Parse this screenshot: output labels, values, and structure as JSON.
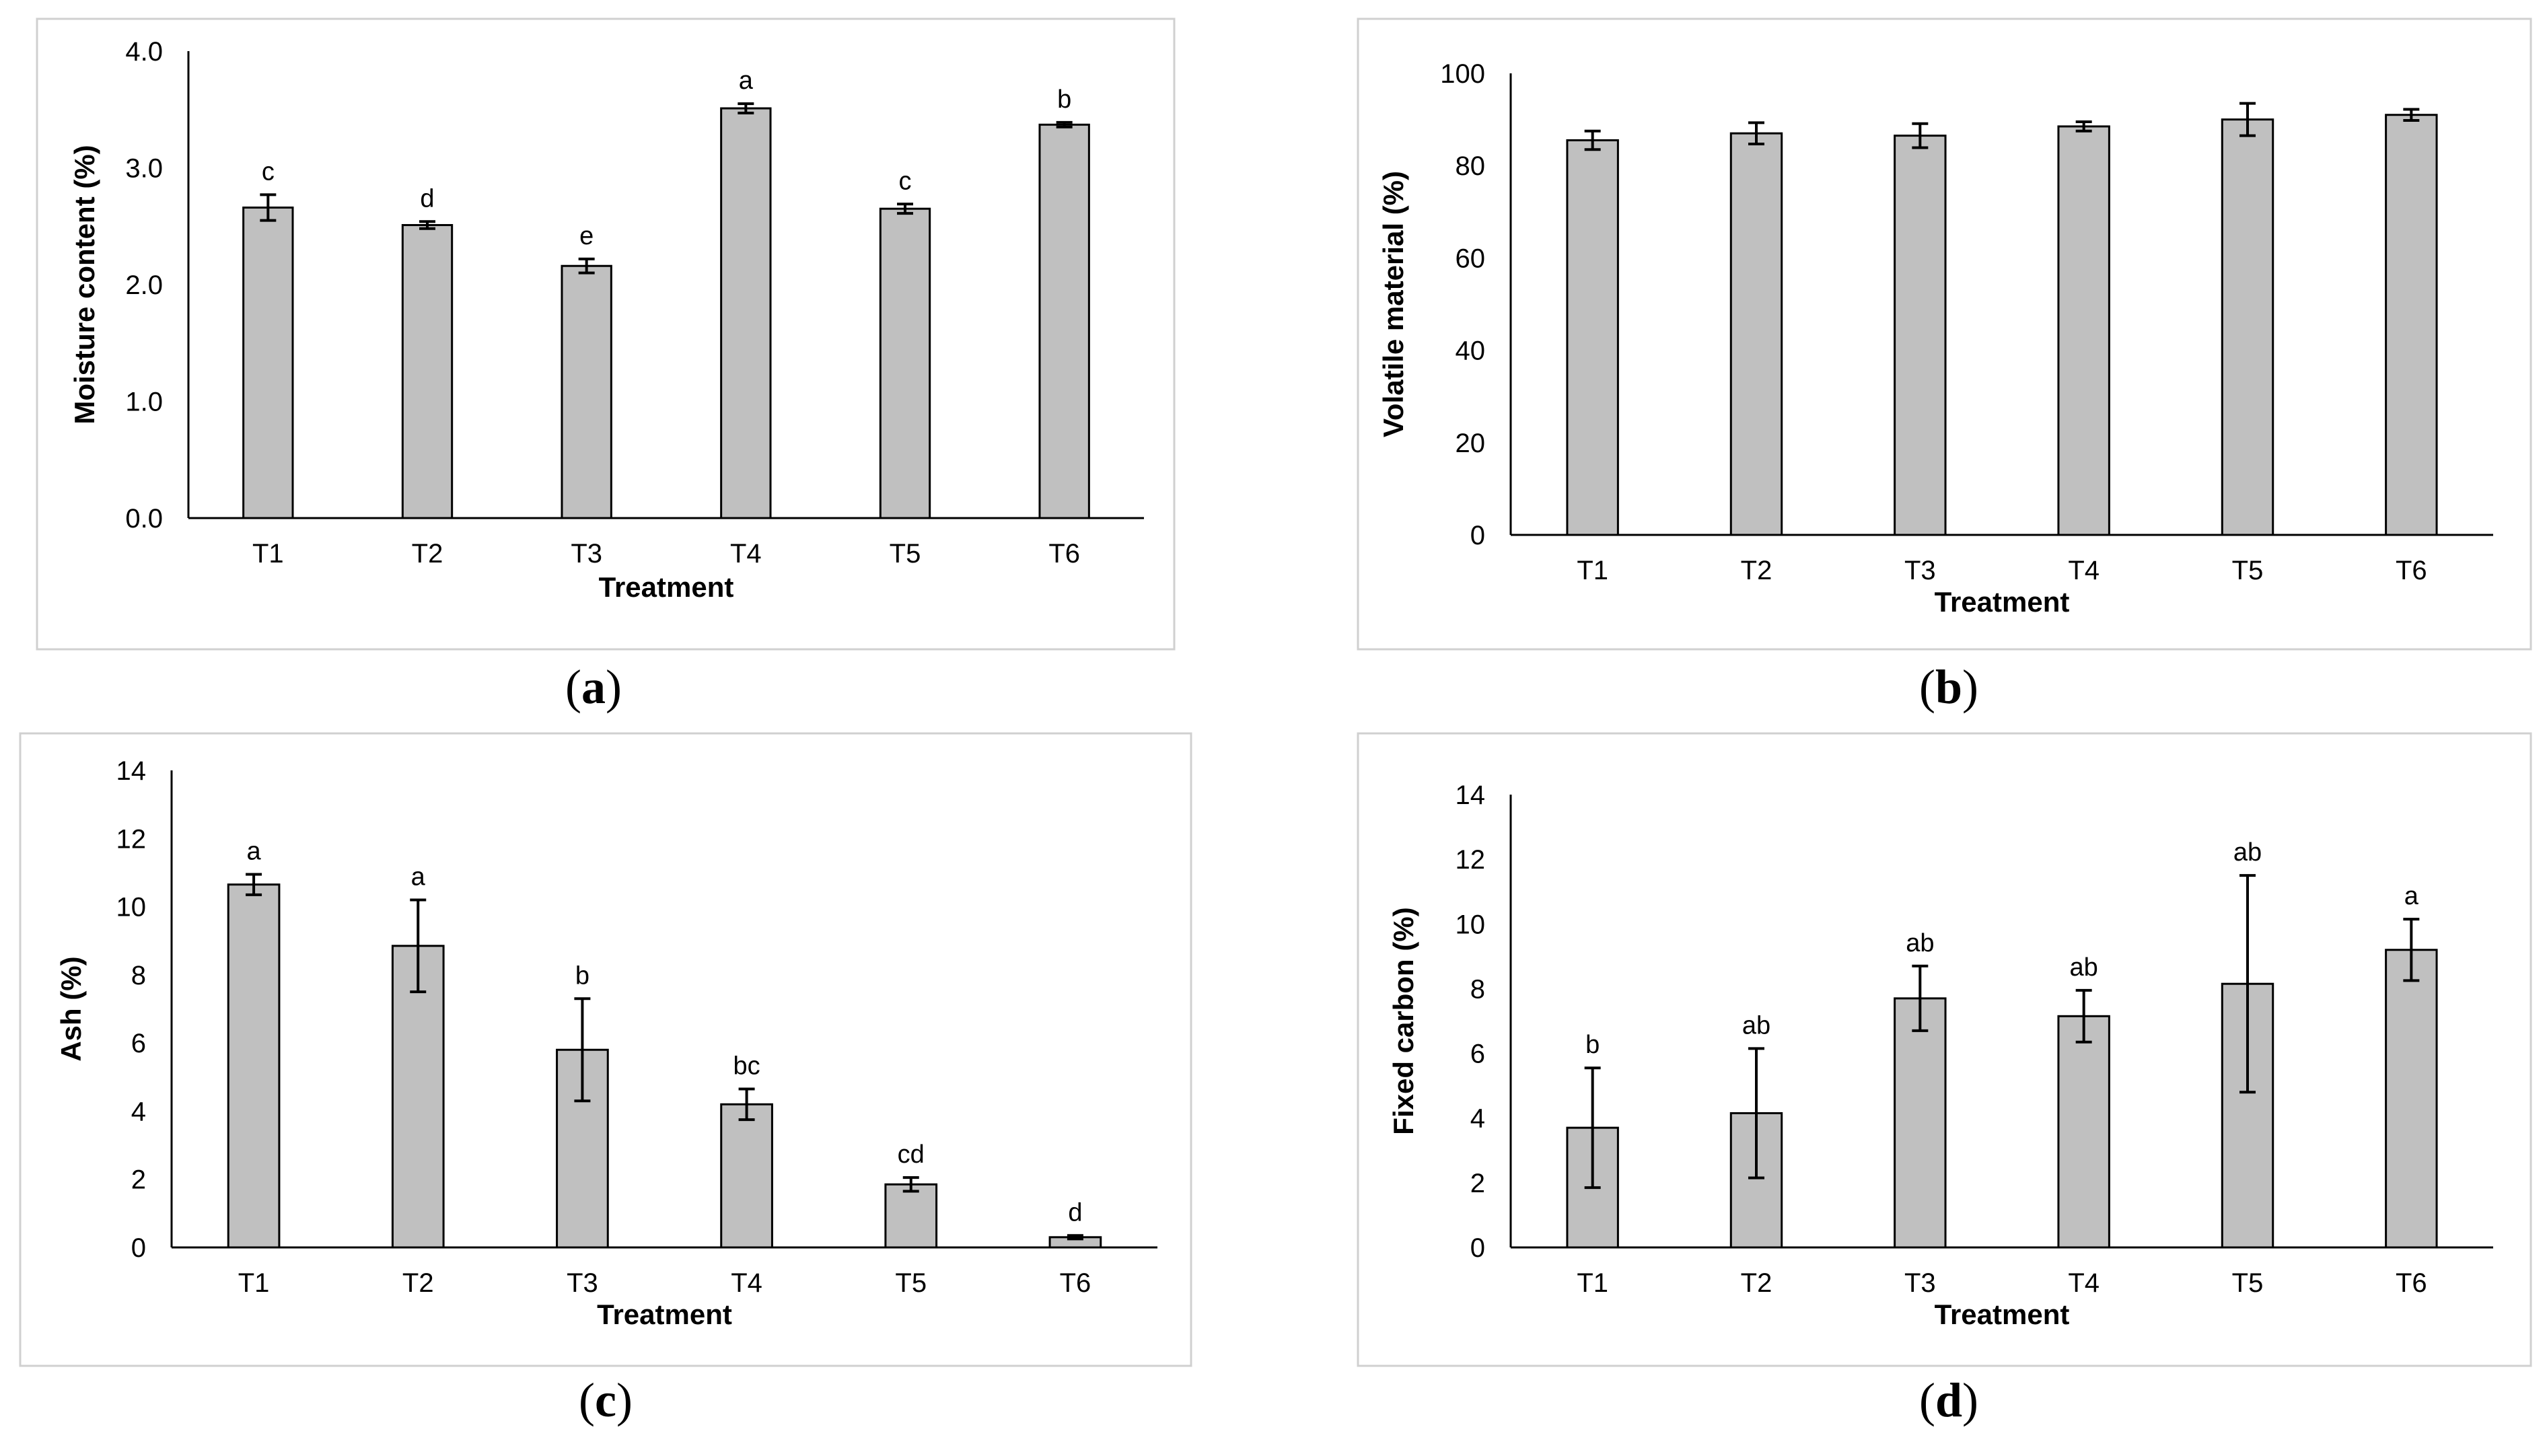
{
  "chart_data": [
    {
      "type": "bar",
      "panel": "a",
      "categories": [
        "T1",
        "T2",
        "T3",
        "T4",
        "T5",
        "T6"
      ],
      "values": [
        2.66,
        2.51,
        2.16,
        3.51,
        2.65,
        3.37
      ],
      "errors": [
        0.11,
        0.03,
        0.06,
        0.04,
        0.04,
        0.02
      ],
      "letters": [
        "c",
        "d",
        "e",
        "a",
        "c",
        "b"
      ],
      "xlabel": "Treatment",
      "ylabel": "Moisture content (%)",
      "ylim": [
        0,
        4
      ],
      "yticks": [
        "0.0",
        "1.0",
        "2.0",
        "3.0",
        "4.0"
      ],
      "caption": "a"
    },
    {
      "type": "bar",
      "panel": "b",
      "categories": [
        "T1",
        "T2",
        "T3",
        "T4",
        "T5",
        "T6"
      ],
      "values": [
        85.5,
        87.0,
        86.5,
        88.5,
        90.0,
        91.0
      ],
      "errors": [
        2.0,
        2.3,
        2.6,
        1.0,
        3.5,
        1.2
      ],
      "letters": [],
      "xlabel": "Treatment",
      "ylabel": "Volatile material (%)",
      "ylim": [
        0,
        100
      ],
      "yticks": [
        "0",
        "20",
        "40",
        "60",
        "80",
        "100"
      ],
      "caption": "b"
    },
    {
      "type": "bar",
      "panel": "c",
      "categories": [
        "T1",
        "T2",
        "T3",
        "T4",
        "T5",
        "T6"
      ],
      "values": [
        10.65,
        8.85,
        5.8,
        4.2,
        1.85,
        0.3
      ],
      "errors": [
        0.3,
        1.35,
        1.5,
        0.45,
        0.2,
        0.05
      ],
      "letters": [
        "a",
        "a",
        "b",
        "bc",
        "cd",
        "d"
      ],
      "xlabel": "Treatment",
      "ylabel": "Ash (%)",
      "ylim": [
        0,
        14
      ],
      "yticks": [
        "0",
        "2",
        "4",
        "6",
        "8",
        "10",
        "12",
        "14"
      ],
      "caption": "c"
    },
    {
      "type": "bar",
      "panel": "d",
      "categories": [
        "T1",
        "T2",
        "T3",
        "T4",
        "T5",
        "T6"
      ],
      "values": [
        3.7,
        4.15,
        7.7,
        7.15,
        8.15,
        9.2
      ],
      "errors": [
        1.85,
        2.0,
        1.0,
        0.8,
        3.35,
        0.95
      ],
      "letters": [
        "b",
        "ab",
        "ab",
        "ab",
        "ab",
        "a"
      ],
      "xlabel": "Treatment",
      "ylabel": "Fixed carbon (%)",
      "ylim": [
        0,
        14
      ],
      "yticks": [
        "0",
        "2",
        "4",
        "6",
        "8",
        "10",
        "12",
        "14"
      ],
      "caption": "d"
    }
  ]
}
